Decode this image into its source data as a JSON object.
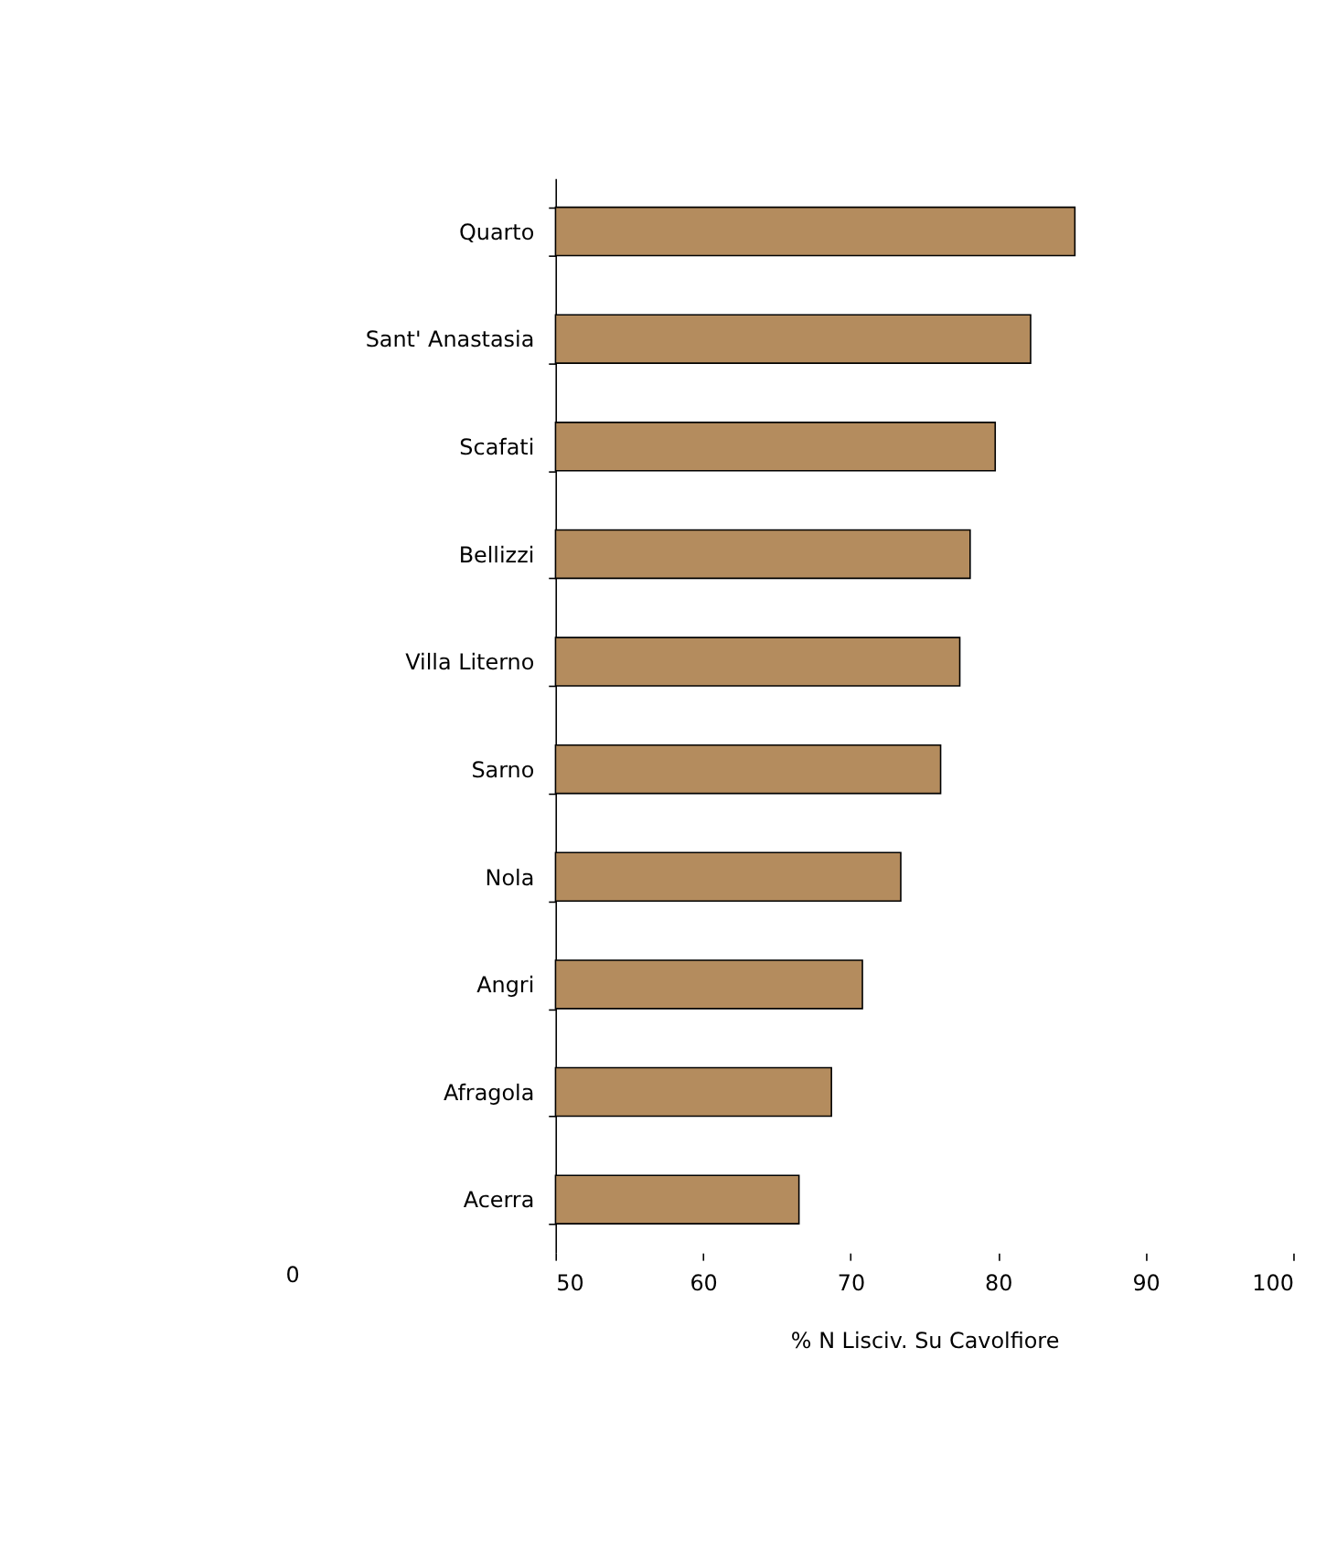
{
  "chart_data": {
    "type": "bar",
    "orientation": "horizontal",
    "xlabel": "% N Lisciv. Su Cavolfiore",
    "categories": [
      "Quarto",
      "Sant' Anastasia",
      "Scafati",
      "Bellizzi",
      "Villa Literno",
      "Sarno",
      "Nola",
      "Angri",
      "Afragola",
      "Acerra"
    ],
    "values": [
      85.2,
      82.2,
      79.8,
      78.1,
      77.4,
      76.1,
      73.4,
      70.8,
      68.7,
      66.5
    ],
    "color": "#b48c5e",
    "xlim": [
      50,
      100
    ],
    "xticks": [
      50,
      60,
      70,
      80,
      90,
      100
    ],
    "grid": false,
    "annotations": [
      "0"
    ]
  }
}
